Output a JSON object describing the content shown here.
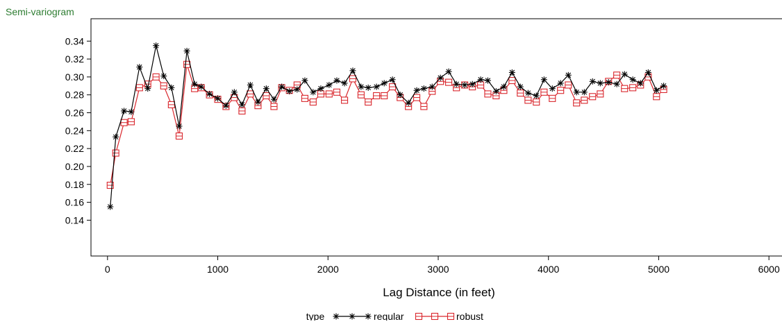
{
  "chart_data": {
    "type": "line",
    "title": "",
    "ylabel": "Semi-variogram",
    "xlabel": "Lag Distance (in feet)",
    "xlim": [
      -150,
      6150
    ],
    "ylim": [
      0.1,
      0.365
    ],
    "xticks": [
      0,
      1000,
      2000,
      3000,
      4000,
      5000,
      6000
    ],
    "yticks": [
      0.14,
      0.16,
      0.18,
      0.2,
      0.22,
      0.24,
      0.26,
      0.28,
      0.3,
      0.32,
      0.34
    ],
    "ytick_labels": [
      "0.14",
      "0.16",
      "0.18",
      "0.20",
      "0.22",
      "0.24",
      "0.26",
      "0.28",
      "0.30",
      "0.32",
      "0.34"
    ],
    "grid": false,
    "legend": {
      "title": "type",
      "position": "bottom-center"
    },
    "series": [
      {
        "name": "regular",
        "color": "#000000",
        "marker": "star",
        "x": [
          25,
          75,
          150,
          215,
          290,
          365,
          440,
          510,
          580,
          650,
          720,
          790,
          850,
          925,
          1000,
          1075,
          1150,
          1220,
          1295,
          1365,
          1440,
          1510,
          1580,
          1650,
          1720,
          1790,
          1865,
          1935,
          2010,
          2080,
          2150,
          2225,
          2300,
          2365,
          2440,
          2510,
          2585,
          2655,
          2730,
          2805,
          2870,
          2945,
          3020,
          3095,
          3165,
          3240,
          3310,
          3385,
          3450,
          3525,
          3595,
          3670,
          3745,
          3815,
          3890,
          3960,
          4035,
          4110,
          4180,
          4255,
          4325,
          4400,
          4470,
          4545,
          4620,
          4690,
          4765,
          4835,
          4905,
          4980,
          5045
        ],
        "y": [
          0.155,
          0.233,
          0.262,
          0.261,
          0.311,
          0.287,
          0.335,
          0.301,
          0.288,
          0.245,
          0.329,
          0.292,
          0.289,
          0.281,
          0.276,
          0.268,
          0.283,
          0.269,
          0.291,
          0.272,
          0.287,
          0.275,
          0.289,
          0.284,
          0.286,
          0.296,
          0.283,
          0.287,
          0.291,
          0.296,
          0.293,
          0.307,
          0.289,
          0.288,
          0.289,
          0.293,
          0.297,
          0.28,
          0.271,
          0.285,
          0.287,
          0.289,
          0.299,
          0.306,
          0.292,
          0.291,
          0.292,
          0.297,
          0.296,
          0.284,
          0.289,
          0.305,
          0.289,
          0.282,
          0.279,
          0.297,
          0.287,
          0.293,
          0.302,
          0.283,
          0.283,
          0.295,
          0.293,
          0.294,
          0.292,
          0.303,
          0.297,
          0.293,
          0.305,
          0.285,
          0.29
        ]
      },
      {
        "name": "robust",
        "color": "#d9262c",
        "marker": "square",
        "x": [
          25,
          75,
          150,
          215,
          290,
          365,
          440,
          510,
          580,
          650,
          720,
          790,
          850,
          925,
          1000,
          1075,
          1150,
          1220,
          1295,
          1365,
          1440,
          1510,
          1580,
          1650,
          1720,
          1790,
          1865,
          1935,
          2010,
          2080,
          2150,
          2225,
          2300,
          2365,
          2440,
          2510,
          2585,
          2655,
          2730,
          2805,
          2870,
          2945,
          3020,
          3095,
          3165,
          3240,
          3310,
          3385,
          3450,
          3525,
          3595,
          3670,
          3745,
          3815,
          3890,
          3960,
          4035,
          4110,
          4180,
          4255,
          4325,
          4400,
          4470,
          4545,
          4620,
          4690,
          4765,
          4835,
          4905,
          4980,
          5045
        ],
        "y": [
          0.179,
          0.215,
          0.249,
          0.25,
          0.288,
          0.292,
          0.3,
          0.29,
          0.269,
          0.234,
          0.314,
          0.287,
          0.288,
          0.28,
          0.275,
          0.267,
          0.277,
          0.262,
          0.281,
          0.268,
          0.279,
          0.267,
          0.288,
          0.285,
          0.291,
          0.276,
          0.272,
          0.281,
          0.281,
          0.283,
          0.274,
          0.298,
          0.28,
          0.272,
          0.279,
          0.279,
          0.289,
          0.277,
          0.267,
          0.277,
          0.267,
          0.284,
          0.295,
          0.294,
          0.288,
          0.291,
          0.289,
          0.291,
          0.281,
          0.279,
          0.285,
          0.296,
          0.282,
          0.274,
          0.272,
          0.283,
          0.276,
          0.285,
          0.291,
          0.271,
          0.274,
          0.278,
          0.281,
          0.295,
          0.302,
          0.287,
          0.288,
          0.291,
          0.3,
          0.278,
          0.286
        ]
      }
    ]
  }
}
